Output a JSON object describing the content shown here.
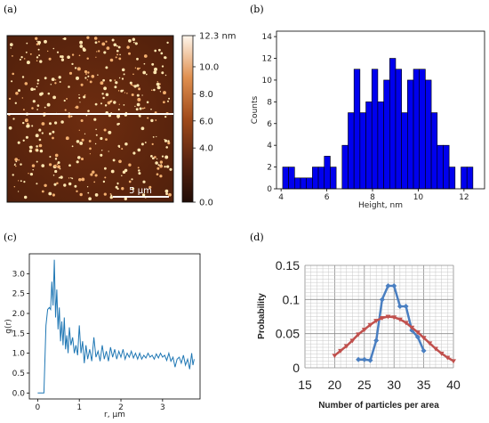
{
  "panels": {
    "a": {
      "label": "(a)"
    },
    "b": {
      "label": "(b)"
    },
    "c": {
      "label": "(c)"
    },
    "d": {
      "label": "(d)"
    }
  },
  "colors": {
    "bar": "#0000ee",
    "afm_dark": "#2a1208",
    "afm_mid": "#7a3412",
    "particle": "#ffe6b0",
    "gr_line": "#1f77b4",
    "curve_blue": "#4a7fc1",
    "curve_red": "#c0504d"
  },
  "chart_data": [
    {
      "type": "heatmap",
      "panel": "a",
      "colorbar": {
        "ticks": [
          "12.3 nm",
          "10.0",
          "8.0",
          "6.0",
          "4.0",
          "0.0"
        ],
        "range": [
          0,
          12.3
        ]
      },
      "scalebar_label": "5 μm"
    },
    {
      "type": "bar",
      "panel": "b",
      "xlabel": "Height, nm",
      "ylabel": "Counts",
      "xlim": [
        3.8,
        12.9
      ],
      "ylim": [
        0,
        14.5
      ],
      "xticks": [
        4,
        6,
        8,
        10,
        12
      ],
      "yticks": [
        0,
        2,
        4,
        6,
        8,
        10,
        12,
        14
      ],
      "bins": [
        {
          "x": 4.2,
          "v": 2
        },
        {
          "x": 4.46,
          "v": 2
        },
        {
          "x": 4.72,
          "v": 1
        },
        {
          "x": 4.98,
          "v": 1
        },
        {
          "x": 5.24,
          "v": 1
        },
        {
          "x": 5.5,
          "v": 2
        },
        {
          "x": 5.76,
          "v": 2
        },
        {
          "x": 6.02,
          "v": 3
        },
        {
          "x": 6.28,
          "v": 2
        },
        {
          "x": 6.54,
          "v": 0
        },
        {
          "x": 6.8,
          "v": 4
        },
        {
          "x": 7.06,
          "v": 7
        },
        {
          "x": 7.32,
          "v": 11
        },
        {
          "x": 7.58,
          "v": 7
        },
        {
          "x": 7.84,
          "v": 8
        },
        {
          "x": 8.1,
          "v": 11
        },
        {
          "x": 8.36,
          "v": 8
        },
        {
          "x": 8.62,
          "v": 10
        },
        {
          "x": 8.88,
          "v": 12
        },
        {
          "x": 9.14,
          "v": 11
        },
        {
          "x": 9.4,
          "v": 7
        },
        {
          "x": 9.66,
          "v": 10
        },
        {
          "x": 9.92,
          "v": 11
        },
        {
          "x": 10.18,
          "v": 11
        },
        {
          "x": 10.44,
          "v": 10
        },
        {
          "x": 10.7,
          "v": 7
        },
        {
          "x": 10.96,
          "v": 4
        },
        {
          "x": 11.22,
          "v": 4
        },
        {
          "x": 11.48,
          "v": 2
        },
        {
          "x": 11.74,
          "v": 0
        },
        {
          "x": 12.0,
          "v": 2
        },
        {
          "x": 12.26,
          "v": 2
        }
      ],
      "bin_width": 0.26
    },
    {
      "type": "line",
      "panel": "c",
      "ylabel": "g(r)",
      "xlabel": "r, μm",
      "xlim": [
        -0.2,
        3.9
      ],
      "ylim": [
        -0.15,
        3.5
      ],
      "xticks": [
        0,
        1,
        2,
        3
      ],
      "yticks": [
        0.0,
        0.5,
        1.0,
        1.5,
        2.0,
        2.5,
        3.0
      ],
      "points": [
        [
          0.0,
          0.0
        ],
        [
          0.1,
          0.0
        ],
        [
          0.15,
          0.0
        ],
        [
          0.2,
          1.7
        ],
        [
          0.24,
          2.1
        ],
        [
          0.28,
          2.15
        ],
        [
          0.31,
          2.1
        ],
        [
          0.34,
          2.8
        ],
        [
          0.37,
          2.2
        ],
        [
          0.4,
          3.35
        ],
        [
          0.43,
          1.9
        ],
        [
          0.46,
          2.6
        ],
        [
          0.49,
          1.6
        ],
        [
          0.52,
          2.15
        ],
        [
          0.55,
          1.3
        ],
        [
          0.58,
          1.8
        ],
        [
          0.61,
          1.2
        ],
        [
          0.64,
          1.9
        ],
        [
          0.67,
          1.1
        ],
        [
          0.7,
          1.45
        ],
        [
          0.73,
          1.0
        ],
        [
          0.76,
          1.65
        ],
        [
          0.8,
          1.2
        ],
        [
          0.84,
          1.4
        ],
        [
          0.88,
          1.0
        ],
        [
          0.92,
          1.2
        ],
        [
          0.96,
          0.95
        ],
        [
          1.0,
          1.7
        ],
        [
          1.04,
          1.0
        ],
        [
          1.08,
          1.3
        ],
        [
          1.12,
          0.75
        ],
        [
          1.16,
          1.2
        ],
        [
          1.2,
          0.85
        ],
        [
          1.25,
          1.1
        ],
        [
          1.3,
          0.8
        ],
        [
          1.35,
          1.4
        ],
        [
          1.4,
          0.9
        ],
        [
          1.45,
          1.05
        ],
        [
          1.5,
          0.8
        ],
        [
          1.55,
          1.2
        ],
        [
          1.6,
          0.85
        ],
        [
          1.65,
          1.05
        ],
        [
          1.7,
          0.8
        ],
        [
          1.75,
          1.15
        ],
        [
          1.8,
          0.9
        ],
        [
          1.85,
          1.1
        ],
        [
          1.9,
          0.85
        ],
        [
          1.95,
          1.05
        ],
        [
          2.0,
          0.9
        ],
        [
          2.05,
          1.1
        ],
        [
          2.1,
          0.85
        ],
        [
          2.15,
          1.0
        ],
        [
          2.2,
          0.9
        ],
        [
          2.25,
          1.05
        ],
        [
          2.3,
          0.88
        ],
        [
          2.35,
          1.0
        ],
        [
          2.4,
          0.85
        ],
        [
          2.45,
          1.0
        ],
        [
          2.5,
          0.85
        ],
        [
          2.55,
          0.95
        ],
        [
          2.6,
          0.88
        ],
        [
          2.65,
          1.0
        ],
        [
          2.7,
          0.9
        ],
        [
          2.75,
          0.95
        ],
        [
          2.8,
          0.85
        ],
        [
          2.85,
          0.98
        ],
        [
          2.9,
          0.88
        ],
        [
          2.95,
          1.0
        ],
        [
          3.0,
          0.9
        ],
        [
          3.05,
          0.95
        ],
        [
          3.1,
          0.82
        ],
        [
          3.15,
          1.0
        ],
        [
          3.2,
          0.8
        ],
        [
          3.25,
          0.9
        ],
        [
          3.3,
          0.65
        ],
        [
          3.35,
          0.85
        ],
        [
          3.4,
          0.9
        ],
        [
          3.45,
          0.75
        ],
        [
          3.5,
          0.95
        ],
        [
          3.55,
          0.7
        ],
        [
          3.6,
          0.85
        ],
        [
          3.65,
          0.6
        ],
        [
          3.7,
          1.0
        ],
        [
          3.73,
          0.7
        ],
        [
          3.76,
          0.85
        ]
      ]
    },
    {
      "type": "line",
      "panel": "d",
      "xlabel": "Number of particles per area",
      "ylabel": "Probability",
      "xlim": [
        15,
        40
      ],
      "ylim": [
        0,
        0.15
      ],
      "xticks": [
        15,
        20,
        25,
        30,
        35,
        40
      ],
      "yticks": [
        "0",
        "0.05",
        "0.1",
        "0.15"
      ],
      "series": [
        {
          "key": "blue",
          "marker": "diamond",
          "x": [
            24,
            25,
            26,
            27,
            28,
            29,
            30,
            31,
            32,
            33,
            34,
            35
          ],
          "y": [
            0.012,
            0.012,
            0.011,
            0.04,
            0.1,
            0.12,
            0.12,
            0.09,
            0.09,
            0.055,
            0.045,
            0.025
          ]
        },
        {
          "key": "red",
          "marker": "triangle-down",
          "x": [
            20,
            21,
            22,
            23,
            24,
            25,
            26,
            27,
            28,
            29,
            30,
            31,
            32,
            33,
            34,
            35,
            36,
            37,
            38,
            39,
            40
          ],
          "y": [
            0.018,
            0.025,
            0.032,
            0.04,
            0.049,
            0.056,
            0.063,
            0.069,
            0.073,
            0.075,
            0.074,
            0.071,
            0.066,
            0.059,
            0.052,
            0.044,
            0.036,
            0.028,
            0.021,
            0.015,
            0.01
          ]
        }
      ]
    }
  ]
}
